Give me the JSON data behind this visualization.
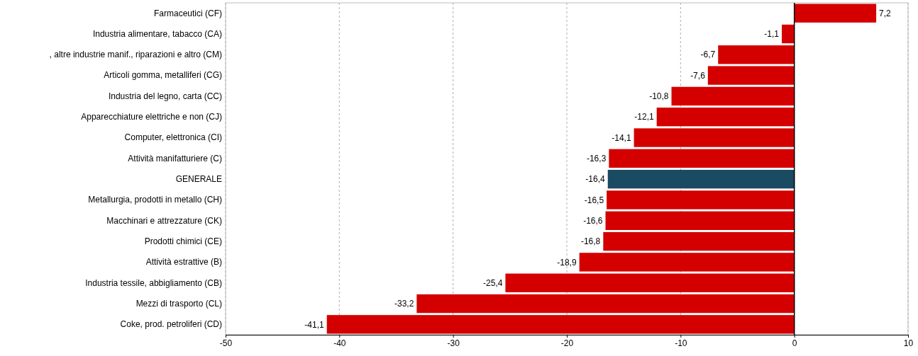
{
  "chart_data": {
    "type": "bar",
    "orientation": "horizontal",
    "categories": [
      "Farmaceutici (CF)",
      "Industria alimentare, tabacco (CA)",
      ", altre industrie manif., riparazioni e altro (CM)",
      "Articoli gomma, metalliferi (CG)",
      "Industria del legno, carta (CC)",
      "Apparecchiature elettriche e non (CJ)",
      "Computer, elettronica (CI)",
      "Attività manifatturiere (C)",
      "GENERALE",
      "Metallurgia, prodotti in metallo (CH)",
      "Macchinari e attrezzature (CK)",
      "Prodotti chimici (CE)",
      "Attività estrattive (B)",
      "Industria tessile, abbigliamento (CB)",
      "Mezzi di trasporto (CL)",
      "Coke, prod. petroliferi (CD)"
    ],
    "values": [
      7.2,
      -1.1,
      -6.7,
      -7.6,
      -10.8,
      -12.1,
      -14.1,
      -16.3,
      -16.4,
      -16.5,
      -16.6,
      -16.8,
      -18.9,
      -25.4,
      -33.2,
      -41.1
    ],
    "value_labels": [
      "7,2",
      "-1,1",
      "-6,7",
      "-7,6",
      "-10,8",
      "-12,1",
      "-14,1",
      "-16,3",
      "-16,4",
      "-16,5",
      "-16,6",
      "-16,8",
      "-18,9",
      "-25,4",
      "-33,2",
      "-41,1"
    ],
    "colors": [
      "#d40000",
      "#d40000",
      "#d40000",
      "#d40000",
      "#d40000",
      "#d40000",
      "#d40000",
      "#d40000",
      "#1b4a63",
      "#d40000",
      "#d40000",
      "#d40000",
      "#d40000",
      "#d40000",
      "#d40000",
      "#d40000"
    ],
    "xlim": [
      -50,
      10
    ],
    "xticks": [
      -50,
      -40,
      -30,
      -20,
      -10,
      0,
      10
    ],
    "grid": "x"
  }
}
